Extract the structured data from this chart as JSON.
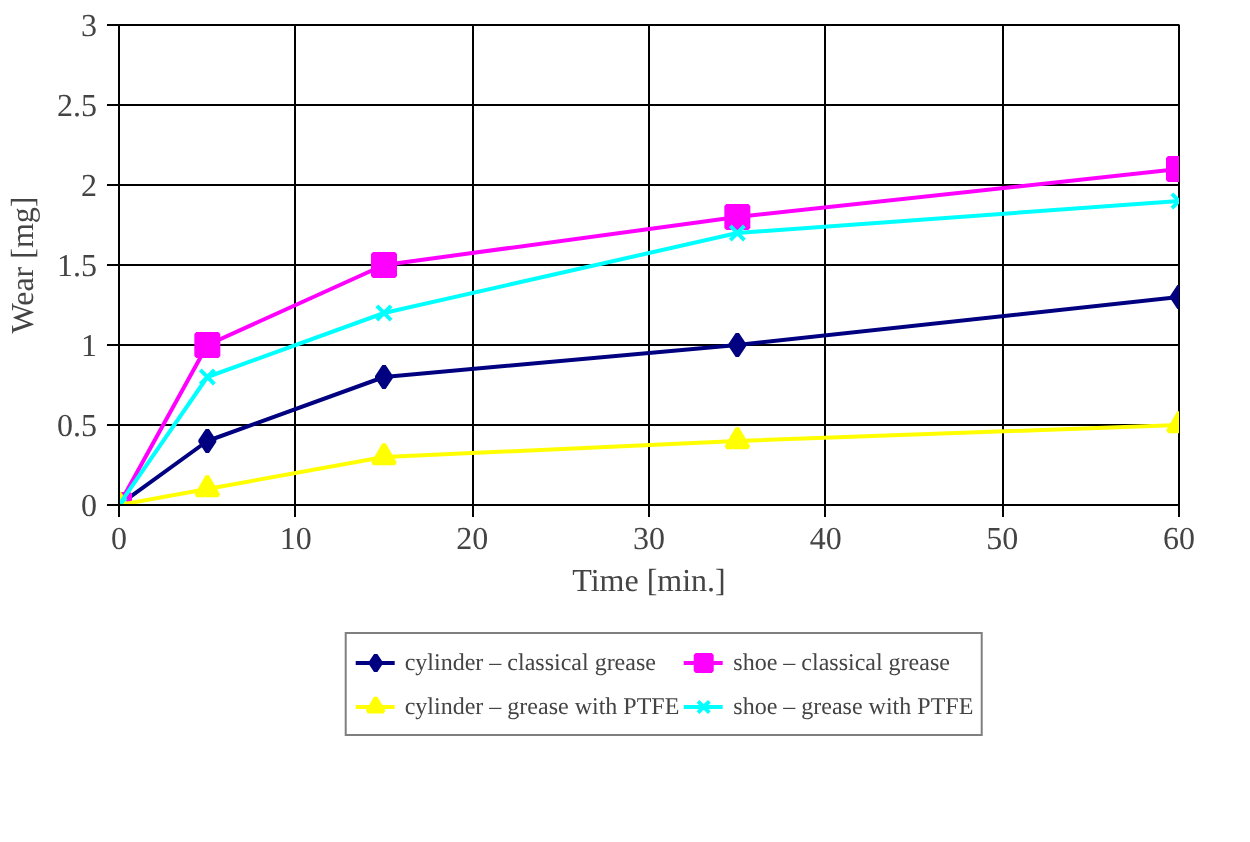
{
  "chart_data": {
    "type": "line",
    "xlabel": "Time [min.]",
    "ylabel": "Wear [mg]",
    "xlim": [
      0,
      60
    ],
    "xticks": [
      0,
      10,
      20,
      30,
      40,
      50,
      60
    ],
    "ylim": [
      0,
      3
    ],
    "yticks": [
      0,
      0.5,
      1,
      1.5,
      2,
      2.5,
      3
    ],
    "grid": true,
    "legend": "bottom",
    "line_style": "solid",
    "x": [
      0,
      5,
      15,
      35,
      60
    ],
    "series": [
      {
        "name": "cylinder – classical grease",
        "color": "#000080",
        "marker": "diamond",
        "values": [
          0,
          0.4,
          0.8,
          1.0,
          1.3
        ]
      },
      {
        "name": "shoe – classical grease",
        "color": "#ff00ff",
        "marker": "square",
        "values": [
          0,
          1.0,
          1.5,
          1.8,
          2.1
        ]
      },
      {
        "name": "cylinder – grease with PTFE",
        "color": "#ffff00",
        "marker": "triangle",
        "values": [
          0,
          0.1,
          0.3,
          0.4,
          0.5
        ]
      },
      {
        "name": "shoe – grease with PTFE",
        "color": "#00ffff",
        "marker": "cross",
        "values": [
          0,
          0.8,
          1.2,
          1.7,
          1.9
        ]
      }
    ]
  }
}
